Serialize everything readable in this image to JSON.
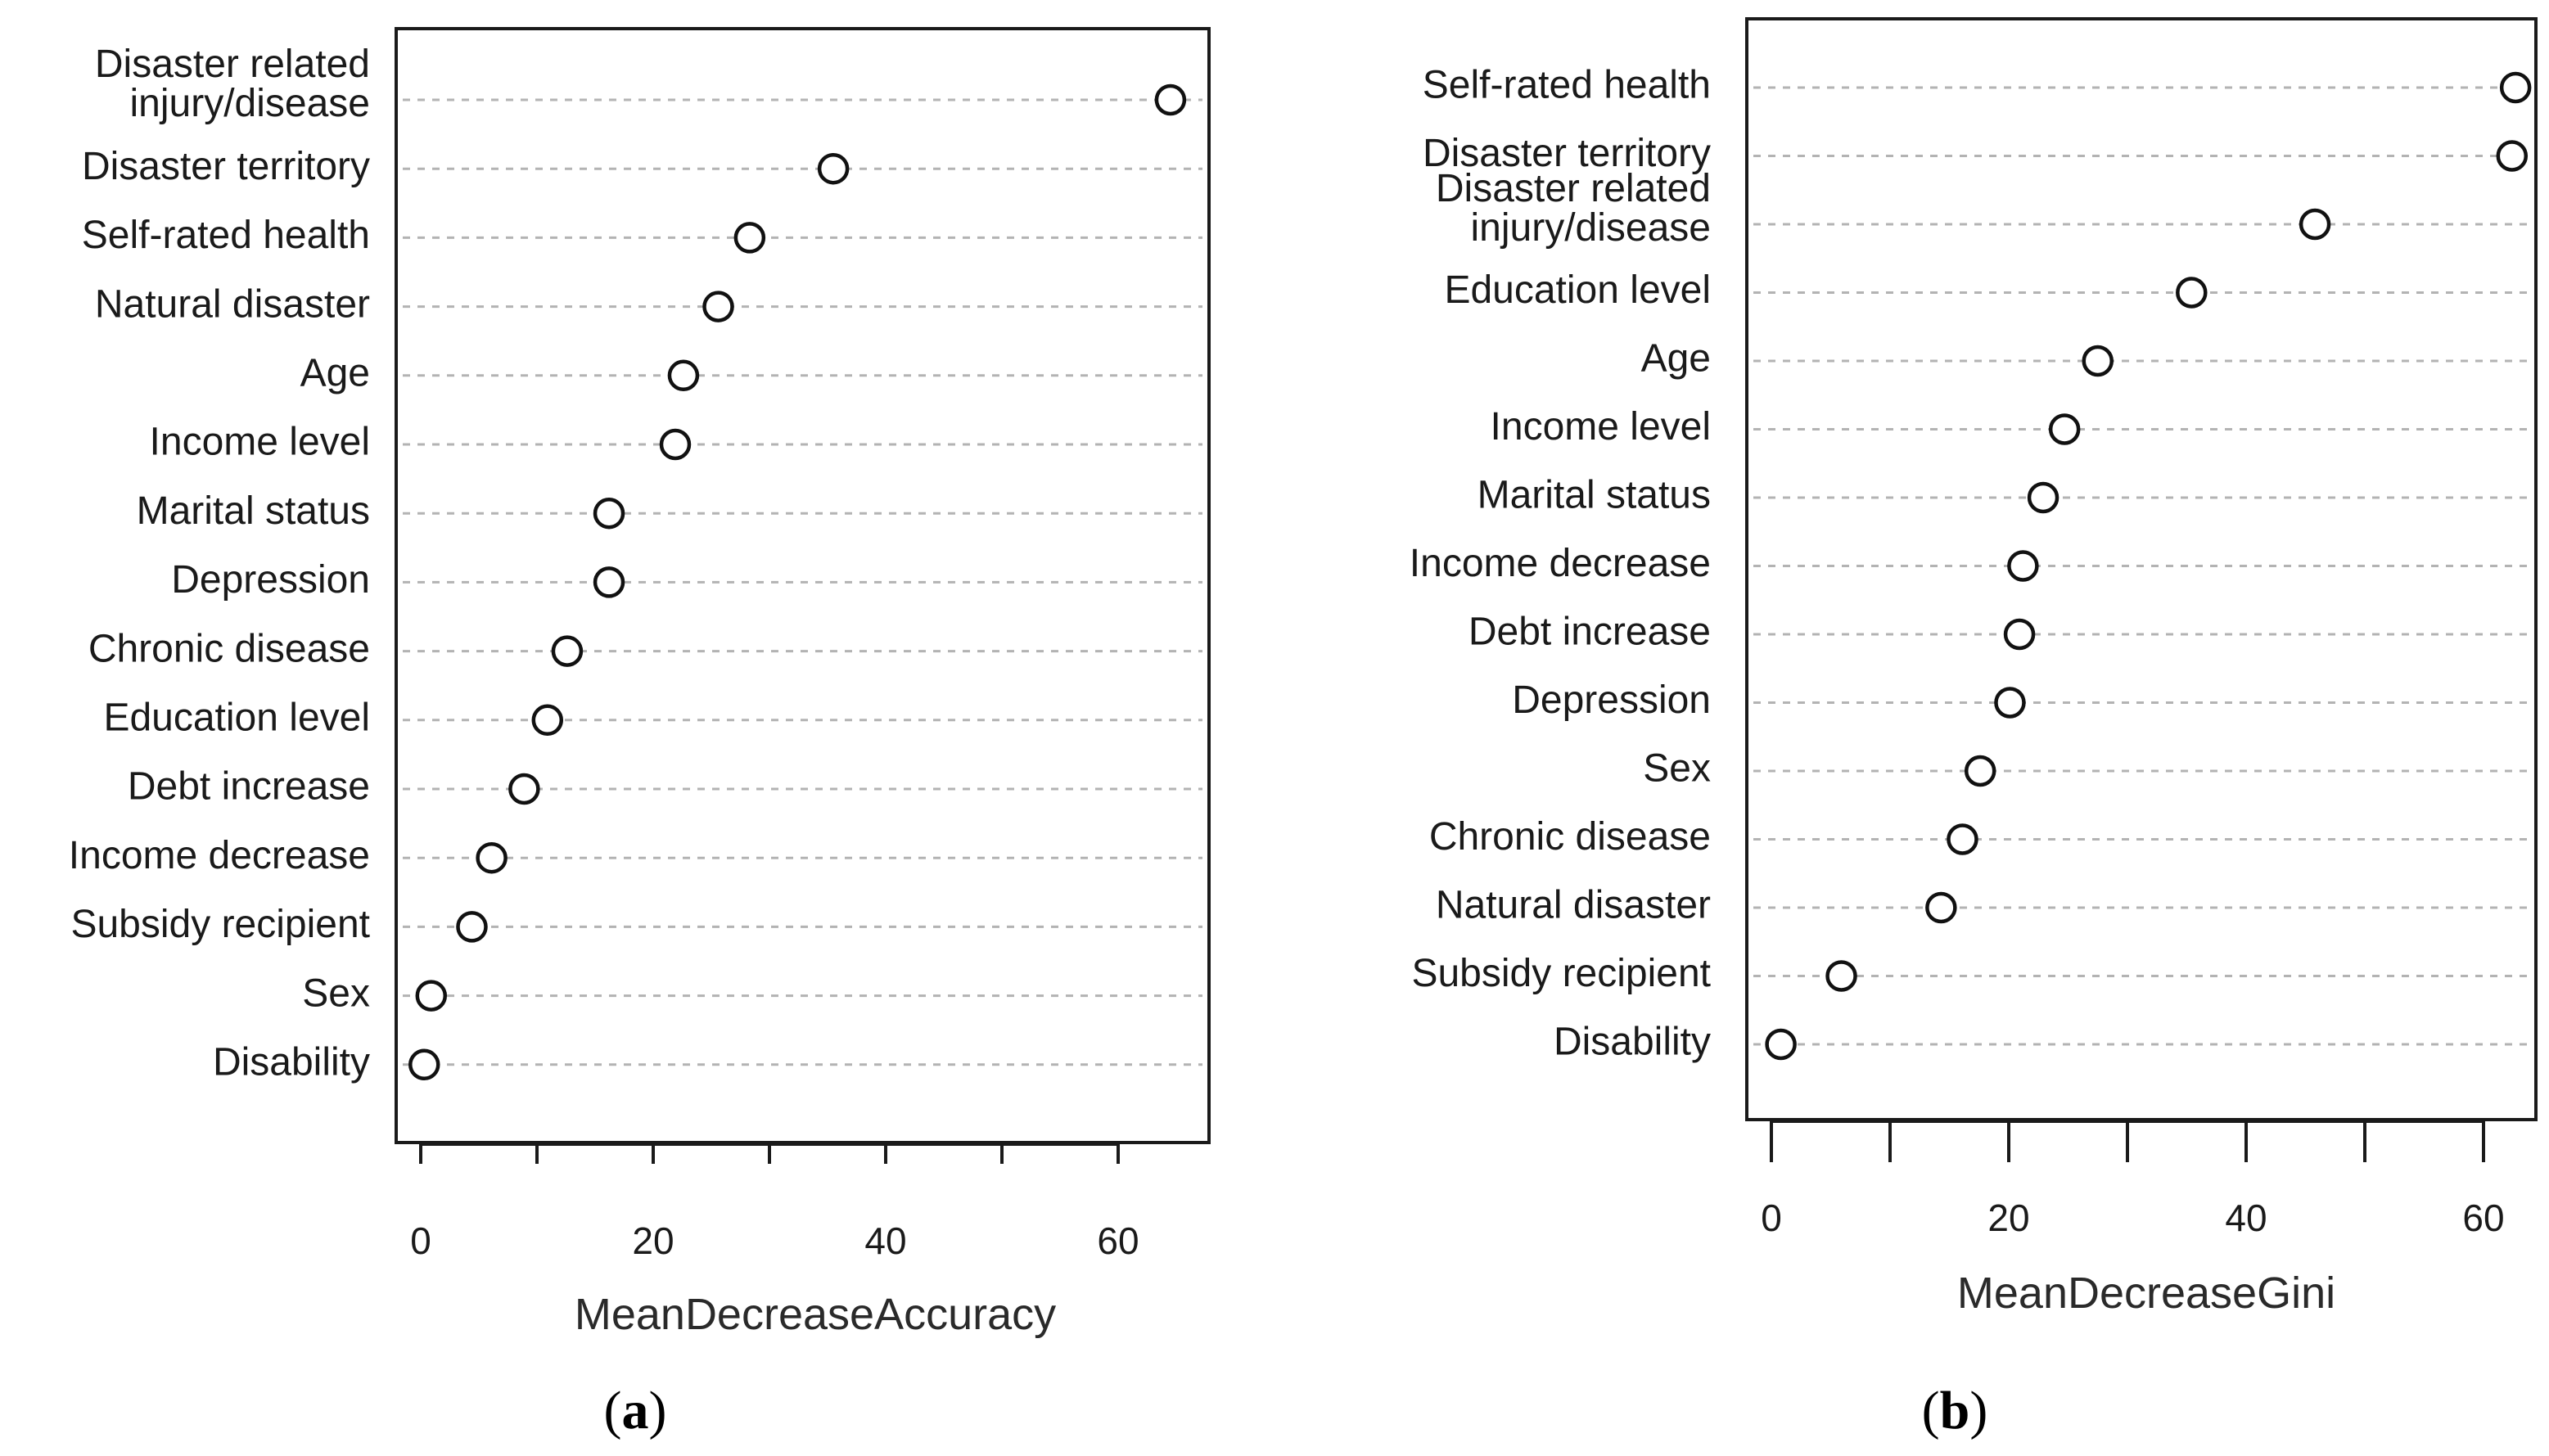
{
  "chart_data": [
    {
      "type": "scatter",
      "variant": "dotchart",
      "panel": "(a)",
      "panel_letter": "a",
      "xlabel": "MeanDecreaseAccuracy",
      "ylabel": "",
      "xlim": [
        -2,
        67
      ],
      "xticks": [
        0,
        20,
        40,
        60
      ],
      "minor_ticks": [
        10,
        30,
        50
      ],
      "categories": [
        "Disaster related\ninjury/disease",
        "Disaster territory",
        "Self-rated health",
        "Natural disaster",
        "Age",
        "Income level",
        "Marital status",
        "Depression",
        "Chronic disease",
        "Education level",
        "Debt increase",
        "Income decrease",
        "Subsidy recipient",
        "Sex",
        "Disability"
      ],
      "values": [
        64.5,
        35.5,
        28.3,
        25.6,
        22.6,
        21.9,
        16.2,
        16.2,
        12.6,
        10.9,
        8.9,
        6.1,
        4.4,
        0.9,
        0.3
      ]
    },
    {
      "type": "scatter",
      "variant": "dotchart",
      "panel": "(b)",
      "panel_letter": "b",
      "xlabel": "MeanDecreaseGini",
      "ylabel": "",
      "xlim": [
        -2,
        65
      ],
      "xticks": [
        0,
        20,
        40,
        60
      ],
      "minor_ticks": [
        10,
        30,
        50
      ],
      "categories": [
        "Self-rated health",
        "Disaster territory",
        "Disaster related\ninjury/disease",
        "Education level",
        "Age",
        "Income level",
        "Marital status",
        "Income decrease",
        "Debt increase",
        "Depression",
        "Sex",
        "Chronic disease",
        "Natural disaster",
        "Subsidy recipient",
        "Disability"
      ],
      "values": [
        62.7,
        62.4,
        45.8,
        35.4,
        27.5,
        24.7,
        22.9,
        21.2,
        20.9,
        20.1,
        17.6,
        16.1,
        14.3,
        5.9,
        0.8
      ]
    }
  ]
}
